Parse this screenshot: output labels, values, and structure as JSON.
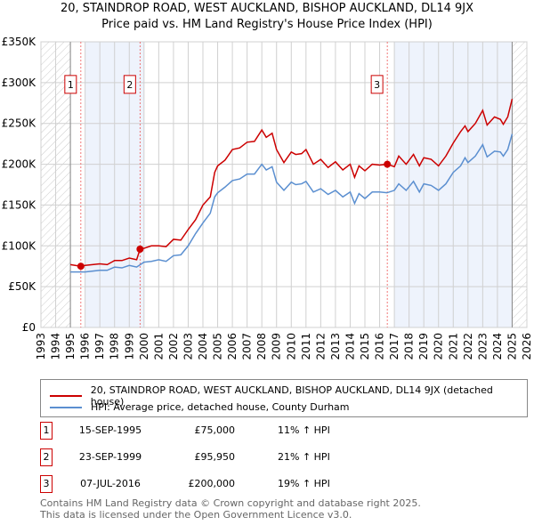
{
  "title": "20, STAINDROP ROAD, WEST AUCKLAND, BISHOP AUCKLAND, DL14 9JX",
  "subtitle": "Price paid vs. HM Land Registry's House Price Index (HPI)",
  "chart_data": {
    "type": "line",
    "xlim": [
      1993,
      2026
    ],
    "ylim": [
      0,
      350000
    ],
    "yticks": [
      0,
      50000,
      100000,
      150000,
      200000,
      250000,
      300000,
      350000
    ],
    "ytick_labels": [
      "£0",
      "£50K",
      "£100K",
      "£150K",
      "£200K",
      "£250K",
      "£300K",
      "£350K"
    ],
    "xticks": [
      1993,
      1994,
      1995,
      1996,
      1997,
      1998,
      1999,
      2000,
      2001,
      2002,
      2003,
      2004,
      2005,
      2006,
      2007,
      2008,
      2009,
      2010,
      2011,
      2012,
      2013,
      2014,
      2015,
      2016,
      2017,
      2018,
      2019,
      2020,
      2021,
      2022,
      2023,
      2024,
      2025,
      2026
    ],
    "hatched_ranges": [
      [
        1993,
        1995
      ],
      [
        2025,
        2026
      ]
    ],
    "shaded_ranges": [
      [
        1996,
        2000
      ],
      [
        2017,
        2025
      ]
    ],
    "series": [
      {
        "name": "20, STAINDROP ROAD, WEST AUCKLAND, BISHOP AUCKLAND, DL14 9JX (detached house)",
        "color": "#cc0000",
        "x": [
          1995,
          1995.7,
          1996,
          1997,
          1997.5,
          1998,
          1998.5,
          1999,
          1999.5,
          1999.73,
          2000,
          2000.5,
          2001,
          2001.5,
          2002,
          2002.5,
          2003,
          2003.5,
          2004,
          2004.5,
          2004.8,
          2005,
          2005.5,
          2006,
          2006.5,
          2007,
          2007.5,
          2008,
          2008.3,
          2008.7,
          2009,
          2009.5,
          2010,
          2010.3,
          2010.7,
          2011,
          2011.5,
          2012,
          2012.5,
          2013,
          2013.5,
          2014,
          2014.3,
          2014.6,
          2015,
          2015.5,
          2016,
          2016.52,
          2017,
          2017.3,
          2017.8,
          2018.3,
          2018.7,
          2019,
          2019.5,
          2020,
          2020.5,
          2021,
          2021.5,
          2021.8,
          2022,
          2022.5,
          2023,
          2023.3,
          2023.8,
          2024.2,
          2024.4,
          2024.7,
          2025
        ],
        "y": [
          77000,
          75000,
          76000,
          78000,
          77000,
          82000,
          82000,
          85000,
          83000,
          95950,
          97000,
          100000,
          100000,
          99000,
          108000,
          107000,
          120000,
          132000,
          150000,
          160000,
          190000,
          198000,
          205000,
          218000,
          220000,
          227000,
          228000,
          242000,
          233000,
          238000,
          218000,
          202000,
          215000,
          212000,
          213000,
          218000,
          200000,
          206000,
          196000,
          203000,
          193000,
          200000,
          184000,
          198000,
          192000,
          200000,
          199000,
          200000,
          197000,
          210000,
          200000,
          212000,
          198000,
          208000,
          206000,
          198000,
          210000,
          226000,
          240000,
          247000,
          240000,
          250000,
          266000,
          248000,
          258000,
          255000,
          249000,
          258000,
          280000
        ]
      },
      {
        "name": "HPI: Average price, detached house, County Durham",
        "color": "#5b8fd0",
        "x": [
          1995,
          1996,
          1997,
          1997.5,
          1998,
          1998.5,
          1999,
          1999.5,
          2000,
          2000.5,
          2001,
          2001.5,
          2002,
          2002.5,
          2003,
          2003.5,
          2004,
          2004.5,
          2004.8,
          2005,
          2005.5,
          2006,
          2006.5,
          2007,
          2007.5,
          2008,
          2008.3,
          2008.7,
          2009,
          2009.5,
          2010,
          2010.3,
          2010.7,
          2011,
          2011.5,
          2012,
          2012.5,
          2013,
          2013.5,
          2014,
          2014.3,
          2014.6,
          2015,
          2015.5,
          2016,
          2016.5,
          2017,
          2017.3,
          2017.8,
          2018.3,
          2018.7,
          2019,
          2019.5,
          2020,
          2020.5,
          2021,
          2021.5,
          2021.8,
          2022,
          2022.5,
          2023,
          2023.3,
          2023.8,
          2024.2,
          2024.4,
          2024.7,
          2025
        ],
        "y": [
          68000,
          68000,
          70000,
          70000,
          74000,
          73000,
          76000,
          74000,
          80000,
          81000,
          83000,
          81000,
          88000,
          89000,
          100000,
          115000,
          128000,
          140000,
          160000,
          165000,
          172000,
          180000,
          182000,
          188000,
          188000,
          200000,
          193000,
          197000,
          178000,
          168000,
          178000,
          175000,
          176000,
          179000,
          166000,
          170000,
          163000,
          168000,
          160000,
          166000,
          152000,
          164000,
          158000,
          166000,
          166000,
          165000,
          168000,
          176000,
          168000,
          179000,
          166000,
          176000,
          174000,
          168000,
          176000,
          190000,
          198000,
          208000,
          202000,
          210000,
          224000,
          209000,
          216000,
          215000,
          210000,
          218000,
          237000
        ]
      }
    ],
    "sales": [
      {
        "label": "1",
        "x": 1995.71,
        "price": 75000,
        "date": "15-SEP-1995",
        "price_label": "£75,000",
        "hpi": "11% ↑ HPI"
      },
      {
        "label": "2",
        "x": 1999.73,
        "price": 95950,
        "date": "23-SEP-1999",
        "price_label": "£95,950",
        "hpi": "21% ↑ HPI"
      },
      {
        "label": "3",
        "x": 2016.52,
        "price": 200000,
        "date": "07-JUL-2016",
        "price_label": "£200,000",
        "hpi": "19% ↑ HPI"
      }
    ]
  },
  "footer1": "Contains HM Land Registry data © Crown copyright and database right 2025.",
  "footer2": "This data is licensed under the Open Government Licence v3.0."
}
